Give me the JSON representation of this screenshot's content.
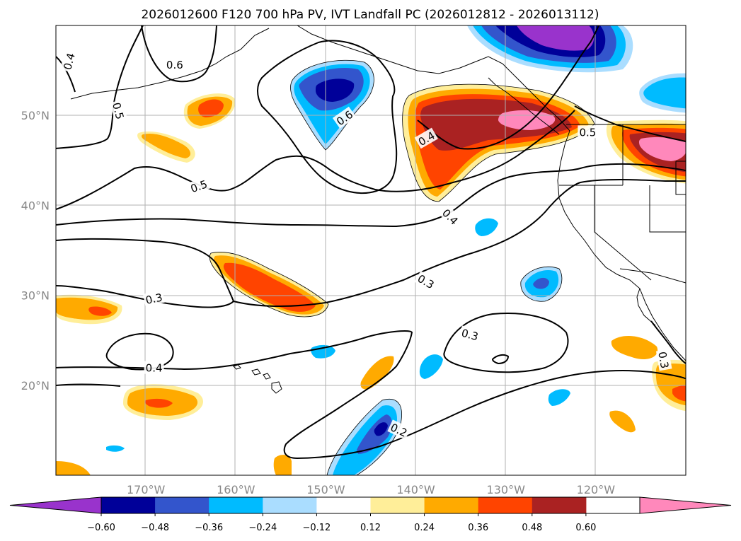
{
  "title": "2026012600 F120 700 hPa PV, IVT Landfall PC (2026012812 - 2026013112)",
  "map": {
    "lon_range": [
      -180,
      -110
    ],
    "lat_range": [
      10,
      60
    ],
    "lon_ticks": [
      {
        "lon": -170,
        "label": "170°W"
      },
      {
        "lon": -160,
        "label": "160°W"
      },
      {
        "lon": -150,
        "label": "150°W"
      },
      {
        "lon": -140,
        "label": "140°W"
      },
      {
        "lon": -130,
        "label": "130°W"
      },
      {
        "lon": -120,
        "label": "120°W"
      }
    ],
    "lat_ticks": [
      {
        "lat": 20,
        "label": "20°N"
      },
      {
        "lat": 30,
        "label": "30°N"
      },
      {
        "lat": 40,
        "label": "40°N"
      },
      {
        "lat": 50,
        "label": "50°N"
      }
    ],
    "contour_labels": [
      {
        "text": "0.4",
        "lon": -178.5,
        "lat": 56.0,
        "rot": 75
      },
      {
        "text": "0.6",
        "lon": -166.8,
        "lat": 55.6,
        "rot": 0
      },
      {
        "text": "0.5",
        "lon": -173.1,
        "lat": 50.5,
        "rot": -75
      },
      {
        "text": "0.6",
        "lon": -147.9,
        "lat": 49.7,
        "rot": 35
      },
      {
        "text": "0.4",
        "lon": -138.8,
        "lat": 47.4,
        "rot": 30
      },
      {
        "text": "0.5",
        "lon": -120.9,
        "lat": 48.1,
        "rot": 0
      },
      {
        "text": "0.5",
        "lon": -164.1,
        "lat": 42.1,
        "rot": 20
      },
      {
        "text": "0.4",
        "lon": -136.2,
        "lat": 38.7,
        "rot": -45
      },
      {
        "text": "0.3",
        "lon": -169.1,
        "lat": 29.6,
        "rot": 12
      },
      {
        "text": "0.3",
        "lon": -138.9,
        "lat": 31.5,
        "rot": -30
      },
      {
        "text": "0.3",
        "lon": -134.0,
        "lat": 25.6,
        "rot": -15
      },
      {
        "text": "0.3",
        "lon": -112.5,
        "lat": 22.8,
        "rot": -80
      },
      {
        "text": "0.4",
        "lon": -169.1,
        "lat": 21.9,
        "rot": 0
      },
      {
        "text": "0.2",
        "lon": -141.9,
        "lat": 15.0,
        "rot": -25
      }
    ]
  },
  "colorbar": {
    "levels": [
      "−0.60",
      "−0.48",
      "−0.36",
      "−0.24",
      "−0.12",
      "0.12",
      "0.24",
      "0.36",
      "0.48",
      "0.60"
    ],
    "colors": [
      "#9933cc",
      "#000099",
      "#3355cc",
      "#00bbff",
      "#aaddff",
      "#ffffff",
      "#ffee99",
      "#ffaa00",
      "#ff4400",
      "#aa2222",
      "#ff88bb"
    ]
  },
  "legend_colors": {
    "pink": "#ff88bb",
    "darkred": "#aa2222",
    "red": "#ff4400",
    "orange": "#ffaa00",
    "yellow": "#ffee99",
    "lightblue": "#aaddff",
    "cyan": "#00bbff",
    "blue": "#3355cc",
    "navy": "#000099",
    "purple": "#9933cc"
  }
}
